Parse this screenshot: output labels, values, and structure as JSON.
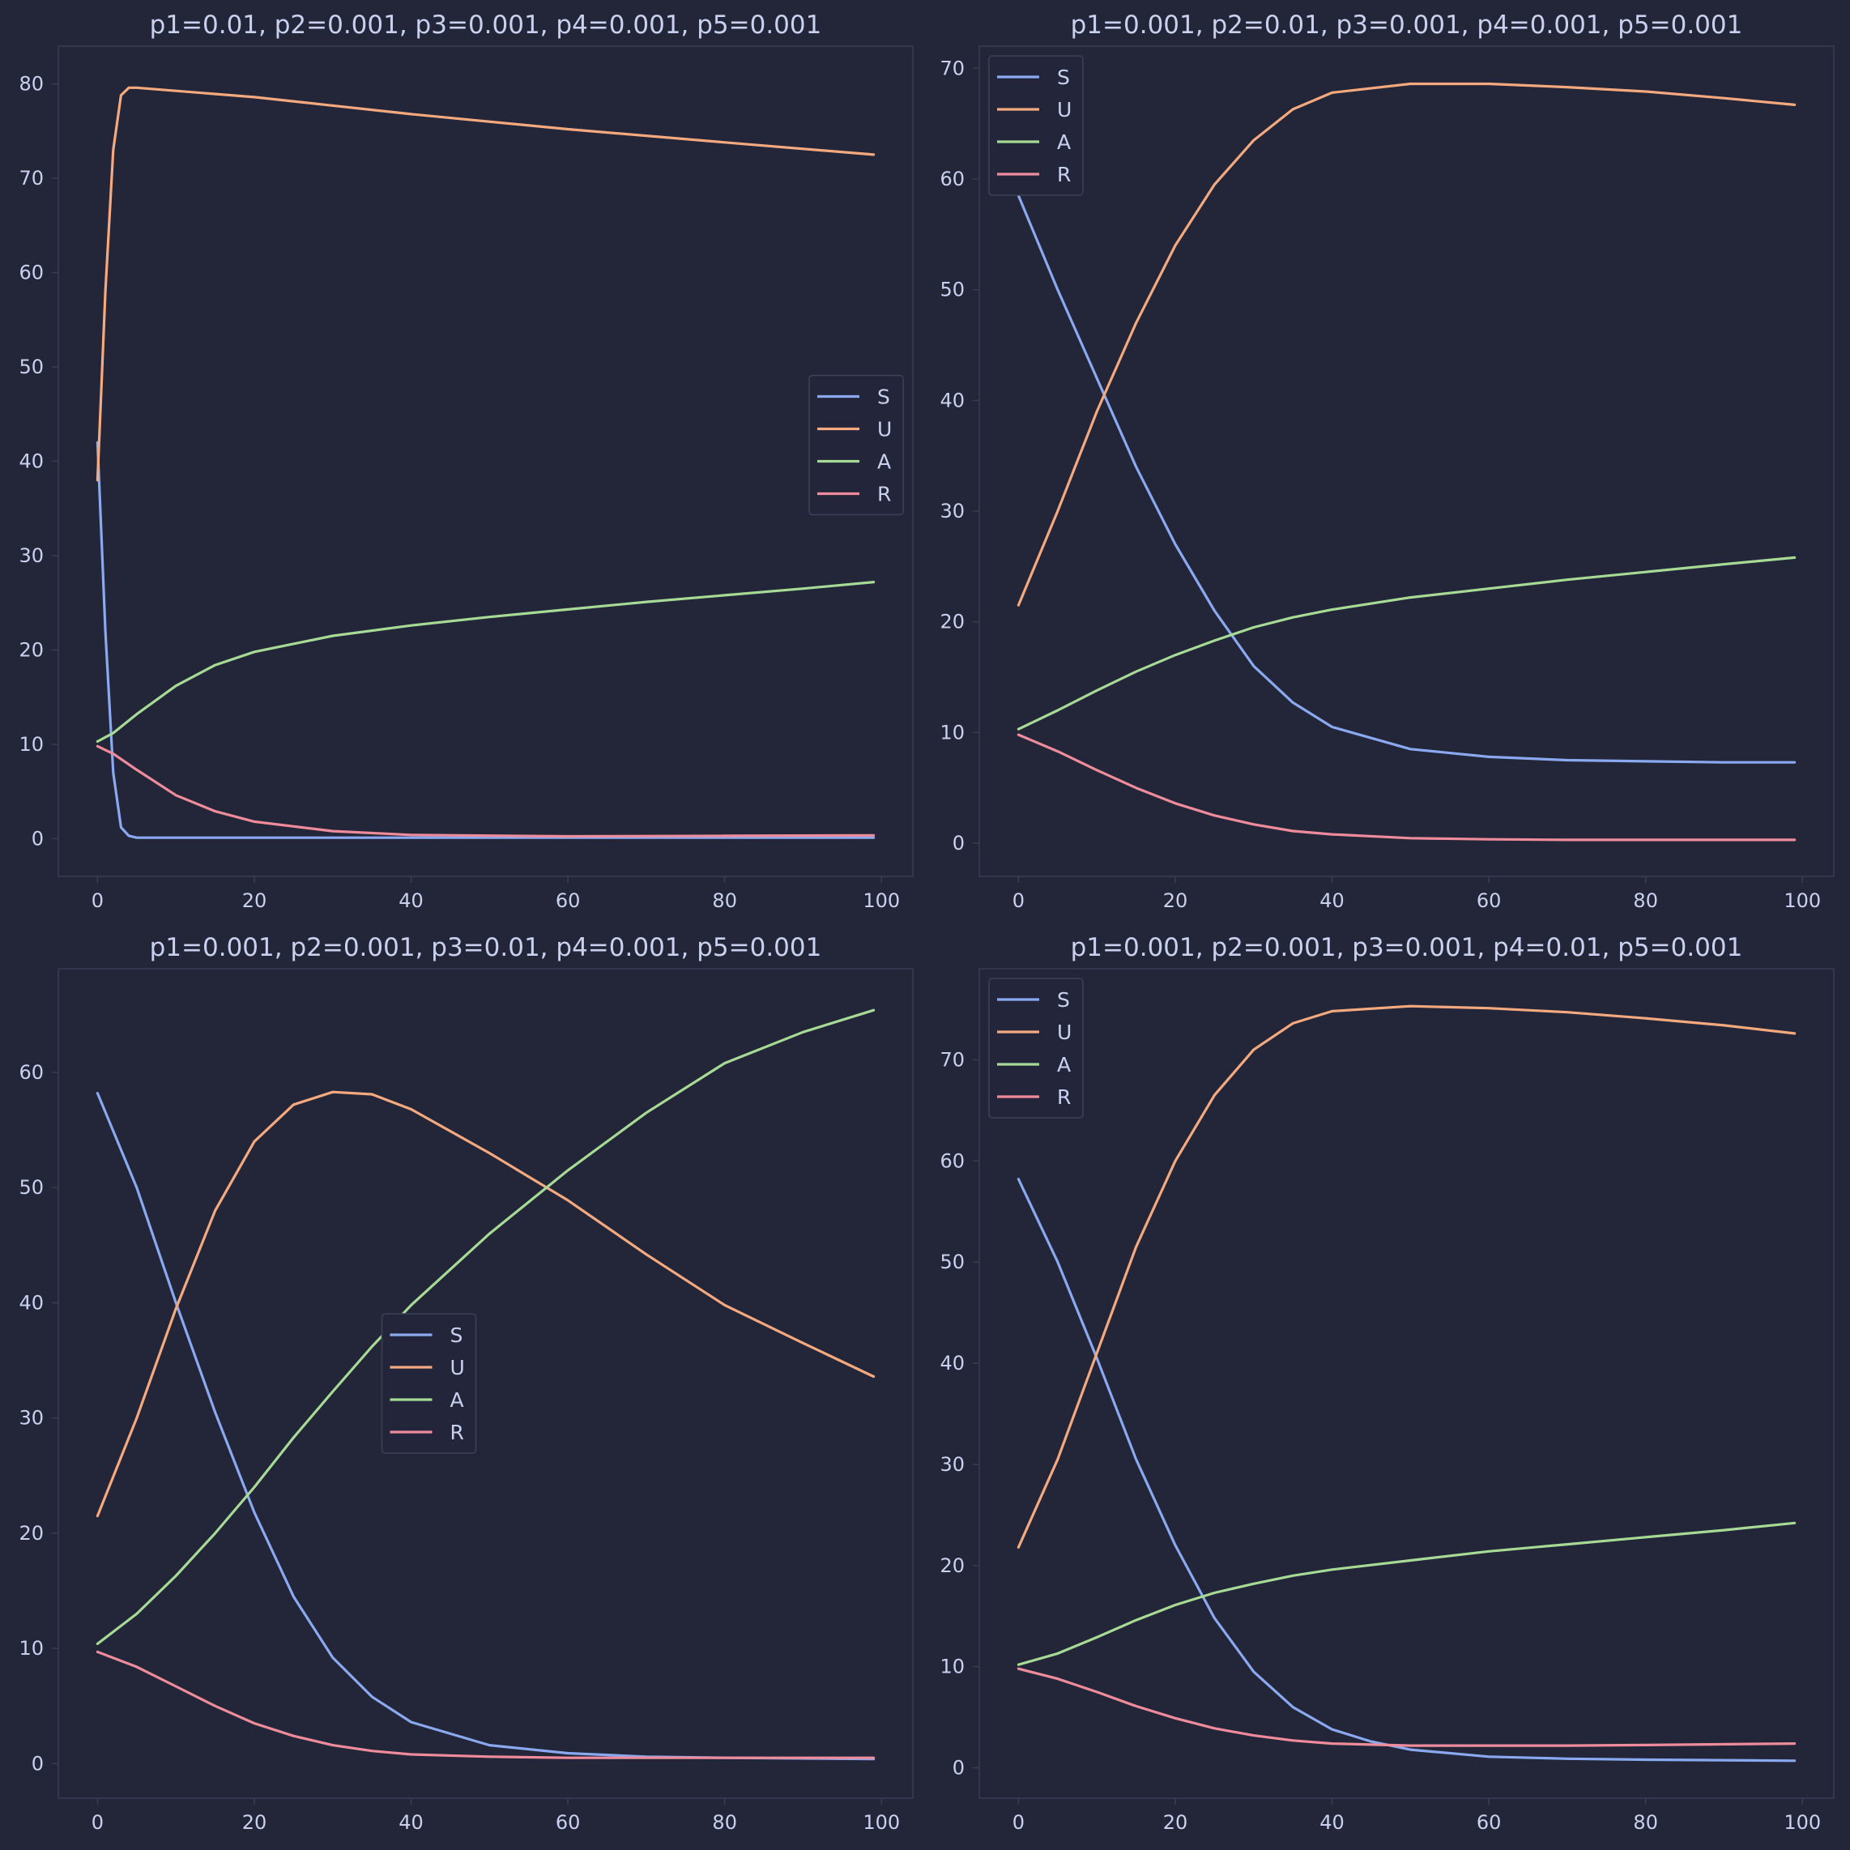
{
  "colors": {
    "background": "#232538",
    "text": "#c9d1ee",
    "S": "#8aa9f0",
    "U": "#f5a97f",
    "A": "#a6da95",
    "R": "#ee8c9c"
  },
  "chart_data": [
    {
      "type": "line",
      "title": "p1=0.01, p2=0.001, p3=0.001, p4=0.001, p5=0.001",
      "xlabel": "",
      "ylabel": "",
      "xlim": [
        -5,
        104
      ],
      "ylim": [
        -4,
        84
      ],
      "xticks": [
        0,
        20,
        40,
        60,
        80,
        100
      ],
      "yticks": [
        0,
        10,
        20,
        30,
        40,
        50,
        60,
        70,
        80
      ],
      "grid": false,
      "legend": "center-right",
      "series": [
        {
          "name": "S",
          "color": "#8aa9f0",
          "points": [
            [
              0,
              42
            ],
            [
              1,
              22
            ],
            [
              2,
              7
            ],
            [
              3,
              1.2
            ],
            [
              4,
              0.3
            ],
            [
              5,
              0.1
            ],
            [
              10,
              0.1
            ],
            [
              20,
              0.1
            ],
            [
              40,
              0.1
            ],
            [
              60,
              0.1
            ],
            [
              80,
              0.1
            ],
            [
              99,
              0.1
            ]
          ]
        },
        {
          "name": "U",
          "color": "#f5a97f",
          "points": [
            [
              0,
              38
            ],
            [
              1,
              58
            ],
            [
              2,
              73
            ],
            [
              3,
              78.8
            ],
            [
              4,
              79.6
            ],
            [
              5,
              79.6
            ],
            [
              20,
              78.6
            ],
            [
              40,
              76.8
            ],
            [
              60,
              75.2
            ],
            [
              80,
              73.8
            ],
            [
              99,
              72.5
            ]
          ]
        },
        {
          "name": "A",
          "color": "#a6da95",
          "points": [
            [
              0,
              10.3
            ],
            [
              2,
              11.2
            ],
            [
              5,
              13.2
            ],
            [
              10,
              16.2
            ],
            [
              15,
              18.4
            ],
            [
              20,
              19.8
            ],
            [
              30,
              21.5
            ],
            [
              40,
              22.6
            ],
            [
              50,
              23.5
            ],
            [
              60,
              24.3
            ],
            [
              70,
              25.1
            ],
            [
              80,
              25.8
            ],
            [
              90,
              26.5
            ],
            [
              99,
              27.2
            ]
          ]
        },
        {
          "name": "R",
          "color": "#ee8c9c",
          "points": [
            [
              0,
              9.8
            ],
            [
              2,
              9
            ],
            [
              5,
              7.3
            ],
            [
              10,
              4.6
            ],
            [
              15,
              2.9
            ],
            [
              20,
              1.8
            ],
            [
              30,
              0.8
            ],
            [
              40,
              0.4
            ],
            [
              60,
              0.25
            ],
            [
              80,
              0.3
            ],
            [
              99,
              0.35
            ]
          ]
        }
      ]
    },
    {
      "type": "line",
      "title": "p1=0.001, p2=0.01, p3=0.001, p4=0.001, p5=0.001",
      "xlabel": "",
      "ylabel": "",
      "xlim": [
        -5,
        104
      ],
      "ylim": [
        -3,
        72
      ],
      "xticks": [
        0,
        20,
        40,
        60,
        80,
        100
      ],
      "yticks": [
        0,
        10,
        20,
        30,
        40,
        50,
        60,
        70
      ],
      "grid": false,
      "legend": "upper left",
      "series": [
        {
          "name": "S",
          "color": "#8aa9f0",
          "points": [
            [
              0,
              58.5
            ],
            [
              5,
              50
            ],
            [
              10,
              42
            ],
            [
              15,
              34
            ],
            [
              20,
              27
            ],
            [
              25,
              21
            ],
            [
              30,
              16
            ],
            [
              35,
              12.7
            ],
            [
              40,
              10.5
            ],
            [
              50,
              8.5
            ],
            [
              60,
              7.8
            ],
            [
              70,
              7.5
            ],
            [
              80,
              7.4
            ],
            [
              90,
              7.3
            ],
            [
              99,
              7.3
            ]
          ]
        },
        {
          "name": "U",
          "color": "#f5a97f",
          "points": [
            [
              0,
              21.5
            ],
            [
              5,
              30
            ],
            [
              10,
              39
            ],
            [
              15,
              47
            ],
            [
              20,
              54
            ],
            [
              25,
              59.5
            ],
            [
              30,
              63.5
            ],
            [
              35,
              66.3
            ],
            [
              40,
              67.8
            ],
            [
              50,
              68.6
            ],
            [
              60,
              68.6
            ],
            [
              70,
              68.3
            ],
            [
              80,
              67.9
            ],
            [
              90,
              67.3
            ],
            [
              99,
              66.7
            ]
          ]
        },
        {
          "name": "A",
          "color": "#a6da95",
          "points": [
            [
              0,
              10.3
            ],
            [
              5,
              12
            ],
            [
              10,
              13.8
            ],
            [
              15,
              15.5
            ],
            [
              20,
              17
            ],
            [
              25,
              18.3
            ],
            [
              30,
              19.5
            ],
            [
              35,
              20.4
            ],
            [
              40,
              21.1
            ],
            [
              50,
              22.2
            ],
            [
              60,
              23
            ],
            [
              70,
              23.8
            ],
            [
              80,
              24.5
            ],
            [
              90,
              25.2
            ],
            [
              99,
              25.8
            ]
          ]
        },
        {
          "name": "R",
          "color": "#ee8c9c",
          "points": [
            [
              0,
              9.8
            ],
            [
              5,
              8.3
            ],
            [
              10,
              6.6
            ],
            [
              15,
              5
            ],
            [
              20,
              3.6
            ],
            [
              25,
              2.5
            ],
            [
              30,
              1.7
            ],
            [
              35,
              1.1
            ],
            [
              40,
              0.8
            ],
            [
              50,
              0.45
            ],
            [
              60,
              0.35
            ],
            [
              70,
              0.3
            ],
            [
              80,
              0.3
            ],
            [
              99,
              0.3
            ]
          ]
        }
      ]
    },
    {
      "type": "line",
      "title": "p1=0.001, p2=0.001, p3=0.01, p4=0.001, p5=0.001",
      "xlabel": "",
      "ylabel": "",
      "xlim": [
        -5,
        104
      ],
      "ylim": [
        -3,
        69
      ],
      "xticks": [
        0,
        20,
        40,
        60,
        80,
        100
      ],
      "yticks": [
        0,
        10,
        20,
        30,
        40,
        50,
        60
      ],
      "grid": false,
      "legend": "center",
      "series": [
        {
          "name": "S",
          "color": "#8aa9f0",
          "points": [
            [
              0,
              58.2
            ],
            [
              5,
              50
            ],
            [
              10,
              40
            ],
            [
              15,
              30.5
            ],
            [
              20,
              21.8
            ],
            [
              25,
              14.5
            ],
            [
              30,
              9.2
            ],
            [
              35,
              5.8
            ],
            [
              40,
              3.6
            ],
            [
              50,
              1.6
            ],
            [
              60,
              0.9
            ],
            [
              70,
              0.6
            ],
            [
              80,
              0.5
            ],
            [
              99,
              0.4
            ]
          ]
        },
        {
          "name": "U",
          "color": "#f5a97f",
          "points": [
            [
              0,
              21.5
            ],
            [
              5,
              30
            ],
            [
              10,
              39.5
            ],
            [
              15,
              48
            ],
            [
              20,
              54
            ],
            [
              25,
              57.2
            ],
            [
              30,
              58.3
            ],
            [
              35,
              58.1
            ],
            [
              40,
              56.8
            ],
            [
              50,
              53
            ],
            [
              60,
              48.9
            ],
            [
              70,
              44.2
            ],
            [
              80,
              39.8
            ],
            [
              90,
              36.5
            ],
            [
              99,
              33.6
            ]
          ]
        },
        {
          "name": "A",
          "color": "#a6da95",
          "points": [
            [
              0,
              10.4
            ],
            [
              5,
              13
            ],
            [
              10,
              16.3
            ],
            [
              15,
              20
            ],
            [
              20,
              24
            ],
            [
              25,
              28.3
            ],
            [
              30,
              32.3
            ],
            [
              35,
              36.2
            ],
            [
              40,
              39.8
            ],
            [
              50,
              46
            ],
            [
              60,
              51.5
            ],
            [
              70,
              56.5
            ],
            [
              80,
              60.8
            ],
            [
              90,
              63.5
            ],
            [
              99,
              65.4
            ]
          ]
        },
        {
          "name": "R",
          "color": "#ee8c9c",
          "points": [
            [
              0,
              9.7
            ],
            [
              5,
              8.4
            ],
            [
              10,
              6.7
            ],
            [
              15,
              5
            ],
            [
              20,
              3.5
            ],
            [
              25,
              2.4
            ],
            [
              30,
              1.6
            ],
            [
              35,
              1.1
            ],
            [
              40,
              0.8
            ],
            [
              50,
              0.6
            ],
            [
              60,
              0.5
            ],
            [
              80,
              0.5
            ],
            [
              99,
              0.5
            ]
          ]
        }
      ]
    },
    {
      "type": "line",
      "title": "p1=0.001, p2=0.001, p3=0.001, p4=0.01, p5=0.001",
      "xlabel": "",
      "ylabel": "",
      "xlim": [
        -5,
        104
      ],
      "ylim": [
        -3,
        79
      ],
      "xticks": [
        0,
        20,
        40,
        60,
        80,
        100
      ],
      "yticks": [
        0,
        10,
        20,
        30,
        40,
        50,
        60,
        70
      ],
      "grid": false,
      "legend": "upper left",
      "series": [
        {
          "name": "S",
          "color": "#8aa9f0",
          "points": [
            [
              0,
              58.2
            ],
            [
              5,
              50
            ],
            [
              10,
              40.5
            ],
            [
              15,
              30.5
            ],
            [
              20,
              22
            ],
            [
              25,
              14.8
            ],
            [
              30,
              9.5
            ],
            [
              35,
              6
            ],
            [
              40,
              3.8
            ],
            [
              45,
              2.6
            ],
            [
              50,
              1.8
            ],
            [
              60,
              1.1
            ],
            [
              70,
              0.9
            ],
            [
              80,
              0.8
            ],
            [
              99,
              0.7
            ]
          ]
        },
        {
          "name": "U",
          "color": "#f5a97f",
          "points": [
            [
              0,
              21.8
            ],
            [
              5,
              30.5
            ],
            [
              10,
              41
            ],
            [
              15,
              51.5
            ],
            [
              20,
              60
            ],
            [
              25,
              66.5
            ],
            [
              30,
              71
            ],
            [
              35,
              73.6
            ],
            [
              40,
              74.8
            ],
            [
              50,
              75.3
            ],
            [
              60,
              75.1
            ],
            [
              70,
              74.7
            ],
            [
              80,
              74.1
            ],
            [
              90,
              73.4
            ],
            [
              99,
              72.6
            ]
          ]
        },
        {
          "name": "A",
          "color": "#a6da95",
          "points": [
            [
              0,
              10.2
            ],
            [
              5,
              11.3
            ],
            [
              10,
              12.9
            ],
            [
              15,
              14.6
            ],
            [
              20,
              16.1
            ],
            [
              25,
              17.3
            ],
            [
              30,
              18.2
            ],
            [
              35,
              19
            ],
            [
              40,
              19.6
            ],
            [
              50,
              20.5
            ],
            [
              60,
              21.4
            ],
            [
              70,
              22.1
            ],
            [
              80,
              22.8
            ],
            [
              90,
              23.5
            ],
            [
              99,
              24.2
            ]
          ]
        },
        {
          "name": "R",
          "color": "#ee8c9c",
          "points": [
            [
              0,
              9.8
            ],
            [
              5,
              8.8
            ],
            [
              10,
              7.5
            ],
            [
              15,
              6.1
            ],
            [
              20,
              4.9
            ],
            [
              25,
              3.9
            ],
            [
              30,
              3.2
            ],
            [
              35,
              2.7
            ],
            [
              40,
              2.4
            ],
            [
              50,
              2.2
            ],
            [
              60,
              2.2
            ],
            [
              70,
              2.2
            ],
            [
              80,
              2.25
            ],
            [
              99,
              2.4
            ]
          ]
        }
      ]
    }
  ]
}
